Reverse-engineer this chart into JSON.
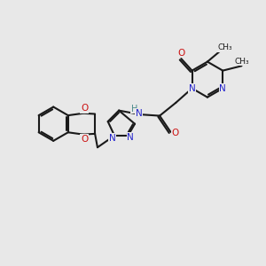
{
  "bg_color": "#e8e8e8",
  "bond_color": "#1a1a1a",
  "N_color": "#2222cc",
  "O_color": "#cc1111",
  "H_color": "#4a8a8a",
  "line_width": 1.5,
  "figsize": [
    3.0,
    3.0
  ],
  "dpi": 100,
  "xlim": [
    0,
    10
  ],
  "ylim": [
    0,
    10
  ]
}
